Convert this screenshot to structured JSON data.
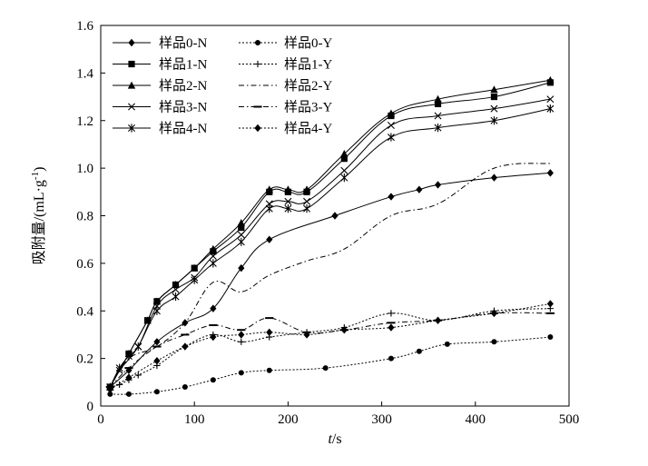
{
  "chart_data": {
    "type": "line",
    "title": "",
    "xlabel_var": "t",
    "xlabel_unit": "/s",
    "ylabel_text": "吸附量/(mL·g",
    "ylabel_sup": "-1",
    "ylabel_close": ")",
    "xlim": [
      0,
      500
    ],
    "ylim": [
      0,
      1.6
    ],
    "xticks": [
      0,
      100,
      200,
      300,
      400,
      500
    ],
    "yticks": [
      0,
      0.2,
      0.4,
      0.6,
      0.8,
      1.0,
      1.2,
      1.4,
      1.6
    ],
    "ytick_labels": [
      "0",
      "0.2",
      "0.4",
      "0.6",
      "0.8",
      "1.0",
      "1.2",
      "1.4",
      "1.6"
    ],
    "xtick_labels": [
      "0",
      "100",
      "200",
      "300",
      "400",
      "500"
    ],
    "grid": false,
    "legend_position": "top-left",
    "series": [
      {
        "name": "样品0-N",
        "dash": "solid",
        "marker": "diamond",
        "x": [
          10,
          30,
          60,
          90,
          120,
          150,
          180,
          250,
          310,
          340,
          360,
          420,
          480
        ],
        "y": [
          0.08,
          0.15,
          0.27,
          0.35,
          0.41,
          0.58,
          0.7,
          0.8,
          0.88,
          0.91,
          0.93,
          0.96,
          0.98
        ]
      },
      {
        "name": "样品1-N",
        "dash": "solid",
        "marker": "square",
        "x": [
          10,
          30,
          50,
          60,
          80,
          100,
          120,
          150,
          180,
          200,
          220,
          260,
          310,
          360,
          420,
          480
        ],
        "y": [
          0.08,
          0.22,
          0.36,
          0.44,
          0.51,
          0.58,
          0.65,
          0.75,
          0.9,
          0.9,
          0.9,
          1.04,
          1.22,
          1.27,
          1.3,
          1.36
        ]
      },
      {
        "name": "样品2-N",
        "dash": "solid",
        "marker": "triangle",
        "x": [
          10,
          30,
          50,
          60,
          80,
          100,
          120,
          150,
          180,
          200,
          220,
          260,
          310,
          360,
          420,
          480
        ],
        "y": [
          0.08,
          0.22,
          0.36,
          0.44,
          0.51,
          0.58,
          0.66,
          0.77,
          0.91,
          0.91,
          0.91,
          1.06,
          1.23,
          1.29,
          1.33,
          1.37
        ]
      },
      {
        "name": "样品3-N",
        "dash": "solid",
        "marker": "x",
        "x": [
          10,
          20,
          40,
          60,
          80,
          100,
          120,
          150,
          180,
          200,
          220,
          260,
          310,
          360,
          420,
          480
        ],
        "y": [
          0.08,
          0.15,
          0.25,
          0.42,
          0.49,
          0.54,
          0.63,
          0.72,
          0.85,
          0.86,
          0.86,
          0.99,
          1.18,
          1.22,
          1.25,
          1.29
        ]
      },
      {
        "name": "样品4-N",
        "dash": "solid",
        "marker": "asterisk",
        "x": [
          10,
          20,
          30,
          40,
          60,
          80,
          100,
          120,
          150,
          180,
          200,
          220,
          260,
          310,
          360,
          420,
          480
        ],
        "y": [
          0.08,
          0.16,
          0.21,
          0.25,
          0.4,
          0.46,
          0.53,
          0.6,
          0.69,
          0.83,
          0.83,
          0.83,
          0.96,
          1.13,
          1.17,
          1.2,
          1.25
        ]
      },
      {
        "name": "样品0-Y",
        "dash": "dotted",
        "marker": "circle",
        "x": [
          10,
          30,
          60,
          90,
          120,
          150,
          180,
          240,
          310,
          340,
          370,
          420,
          480
        ],
        "y": [
          0.05,
          0.05,
          0.06,
          0.08,
          0.11,
          0.14,
          0.15,
          0.16,
          0.2,
          0.23,
          0.26,
          0.27,
          0.29
        ]
      },
      {
        "name": "样品1-Y",
        "dash": "dotted",
        "marker": "plus",
        "x": [
          10,
          20,
          30,
          40,
          60,
          90,
          120,
          150,
          180,
          220,
          260,
          310,
          360,
          420,
          480
        ],
        "y": [
          0.08,
          0.09,
          0.11,
          0.13,
          0.17,
          0.25,
          0.3,
          0.27,
          0.29,
          0.31,
          0.33,
          0.39,
          0.36,
          0.4,
          0.41
        ]
      },
      {
        "name": "样品2-Y",
        "dash": "dashdot",
        "marker": "none",
        "x": [
          10,
          30,
          60,
          90,
          120,
          150,
          180,
          220,
          260,
          310,
          360,
          420,
          480
        ],
        "y": [
          0.08,
          0.2,
          0.25,
          0.35,
          0.52,
          0.48,
          0.55,
          0.61,
          0.66,
          0.8,
          0.85,
          1.0,
          1.02
        ]
      },
      {
        "name": "样品3-Y",
        "dash": "dashdot",
        "marker": "bar",
        "x": [
          10,
          30,
          60,
          90,
          120,
          150,
          180,
          220,
          260,
          310,
          360,
          420,
          480
        ],
        "y": [
          0.08,
          0.16,
          0.25,
          0.3,
          0.34,
          0.32,
          0.37,
          0.31,
          0.32,
          0.35,
          0.36,
          0.39,
          0.39
        ]
      },
      {
        "name": "样品4-Y",
        "dash": "dotted",
        "marker": "diamond",
        "x": [
          10,
          30,
          60,
          90,
          120,
          150,
          180,
          220,
          260,
          310,
          360,
          420,
          480
        ],
        "y": [
          0.07,
          0.12,
          0.19,
          0.25,
          0.29,
          0.3,
          0.31,
          0.3,
          0.32,
          0.33,
          0.36,
          0.39,
          0.43
        ]
      }
    ]
  }
}
